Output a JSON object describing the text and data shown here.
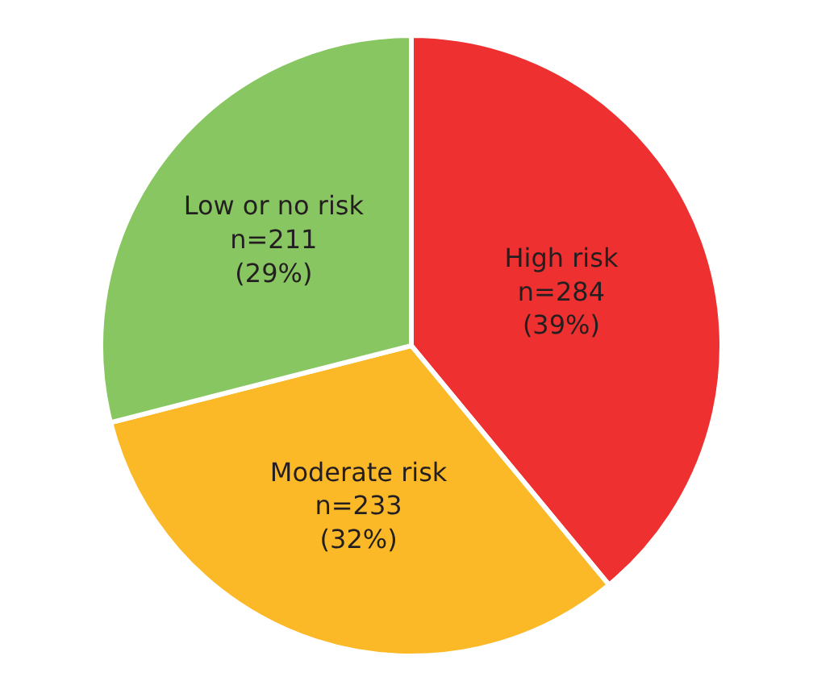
{
  "chart_data": {
    "type": "pie",
    "categories": [
      "High risk",
      "Moderate risk",
      "Low or no risk"
    ],
    "values": [
      284,
      233,
      211
    ],
    "colors": [
      "#ee3030",
      "#fbb928",
      "#88c662"
    ],
    "value_labels": [
      "n=284 (39%)",
      "n=233 (32%)",
      "n=211 (29%)"
    ],
    "legend": false
  }
}
